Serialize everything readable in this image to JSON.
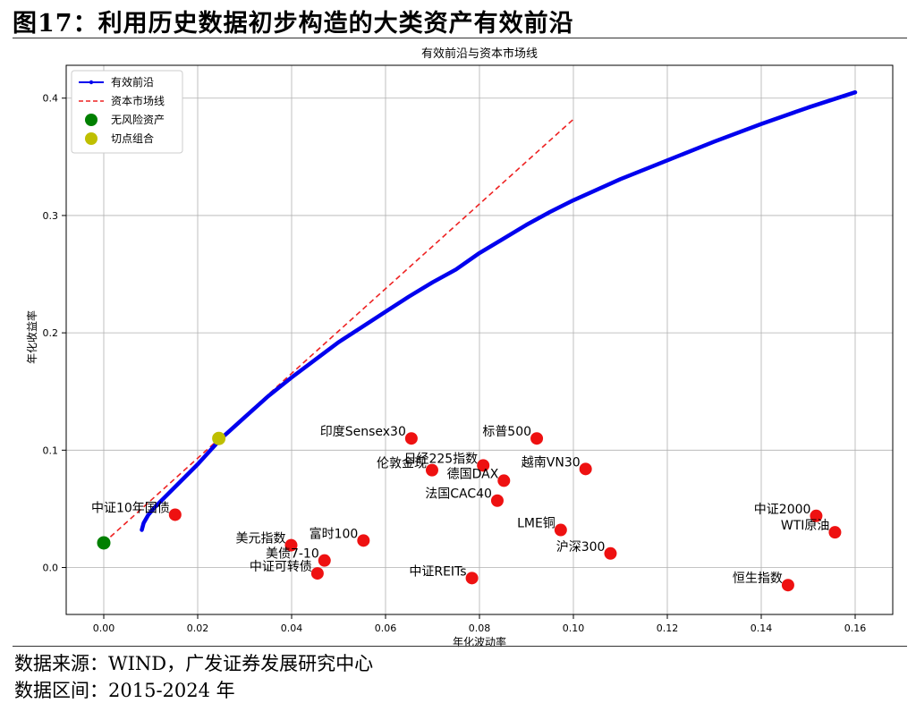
{
  "header": {
    "figure_title": "图17：利用历史数据初步构造的大类资产有效前沿"
  },
  "footer": {
    "source": "数据来源：WIND，广发证券发展研究中心",
    "period": "数据区间：2015-2024 年"
  },
  "chart_data": {
    "type": "scatter",
    "title": "有效前沿与资本市场线",
    "xlabel": "年化波动率",
    "ylabel": "年化收益率",
    "xlim": [
      -0.008,
      0.168
    ],
    "ylim": [
      -0.04,
      0.428
    ],
    "x_ticks": [
      0.0,
      0.02,
      0.04,
      0.06,
      0.08,
      0.1,
      0.12,
      0.14,
      0.16
    ],
    "y_ticks": [
      0.0,
      0.1,
      0.2,
      0.3,
      0.4
    ],
    "grid": true,
    "legend_position": "top-left",
    "legend": [
      {
        "label": "有效前沿",
        "type": "line-marker",
        "color": "#0000ee"
      },
      {
        "label": "资本市场线",
        "type": "dashed",
        "color": "#ee2222"
      },
      {
        "label": "无风险资产",
        "type": "dot",
        "color": "#008000"
      },
      {
        "label": "切点组合",
        "type": "dot",
        "color": "#bfbf00"
      }
    ],
    "efficient_frontier": {
      "name": "有效前沿",
      "color": "#0000ee",
      "points": [
        [
          0.0081,
          0.032
        ],
        [
          0.0085,
          0.038
        ],
        [
          0.0095,
          0.045
        ],
        [
          0.011,
          0.052
        ],
        [
          0.013,
          0.06
        ],
        [
          0.016,
          0.072
        ],
        [
          0.02,
          0.088
        ],
        [
          0.025,
          0.11
        ],
        [
          0.03,
          0.128
        ],
        [
          0.035,
          0.146
        ],
        [
          0.04,
          0.162
        ],
        [
          0.045,
          0.177
        ],
        [
          0.05,
          0.192
        ],
        [
          0.055,
          0.205
        ],
        [
          0.06,
          0.218
        ],
        [
          0.065,
          0.231
        ],
        [
          0.07,
          0.243
        ],
        [
          0.075,
          0.254
        ],
        [
          0.08,
          0.268
        ],
        [
          0.085,
          0.28
        ],
        [
          0.09,
          0.292
        ],
        [
          0.095,
          0.303
        ],
        [
          0.1,
          0.313
        ],
        [
          0.11,
          0.331
        ],
        [
          0.12,
          0.347
        ],
        [
          0.13,
          0.363
        ],
        [
          0.14,
          0.378
        ],
        [
          0.15,
          0.392
        ],
        [
          0.16,
          0.405
        ]
      ]
    },
    "capital_market_line": {
      "name": "资本市场线",
      "color": "#ee2222",
      "points": [
        [
          0.0,
          0.021
        ],
        [
          0.1,
          0.382
        ]
      ]
    },
    "risk_free": {
      "name": "无风险资产",
      "x": 0.0,
      "y": 0.021,
      "color": "#008000"
    },
    "tangency": {
      "name": "切点组合",
      "x": 0.0245,
      "y": 0.11,
      "color": "#bfbf00"
    },
    "assets_color": "#ee1111",
    "assets": [
      {
        "label": "中证10年国债",
        "x": 0.0152,
        "y": 0.045,
        "anchor": "end"
      },
      {
        "label": "印度Sensex30",
        "x": 0.0655,
        "y": 0.11,
        "anchor": "end"
      },
      {
        "label": "标普500",
        "x": 0.0922,
        "y": 0.11,
        "anchor": "end"
      },
      {
        "label": "日经225指数",
        "x": 0.0808,
        "y": 0.087,
        "anchor": "end"
      },
      {
        "label": "伦敦金现",
        "x": 0.0699,
        "y": 0.083,
        "anchor": "end"
      },
      {
        "label": "越南VN30",
        "x": 0.1026,
        "y": 0.084,
        "anchor": "end"
      },
      {
        "label": "德国DAX",
        "x": 0.0852,
        "y": 0.074,
        "anchor": "end"
      },
      {
        "label": "法国CAC40",
        "x": 0.0838,
        "y": 0.057,
        "anchor": "end"
      },
      {
        "label": "中证2000",
        "x": 0.1517,
        "y": 0.044,
        "anchor": "end"
      },
      {
        "label": "WTI原油",
        "x": 0.1557,
        "y": 0.03,
        "anchor": "end"
      },
      {
        "label": "LME铜",
        "x": 0.0973,
        "y": 0.032,
        "anchor": "end"
      },
      {
        "label": "沪深300",
        "x": 0.1079,
        "y": 0.012,
        "anchor": "end"
      },
      {
        "label": "美元指数",
        "x": 0.0399,
        "y": 0.019,
        "anchor": "end"
      },
      {
        "label": "富时100",
        "x": 0.0553,
        "y": 0.023,
        "anchor": "end"
      },
      {
        "label": "美债7-10",
        "x": 0.047,
        "y": 0.006,
        "anchor": "end"
      },
      {
        "label": "中证可转债",
        "x": 0.0455,
        "y": -0.005,
        "anchor": "end"
      },
      {
        "label": "中证REITs",
        "x": 0.0784,
        "y": -0.009,
        "anchor": "end"
      },
      {
        "label": "恒生指数",
        "x": 0.1457,
        "y": -0.015,
        "anchor": "end"
      }
    ]
  }
}
